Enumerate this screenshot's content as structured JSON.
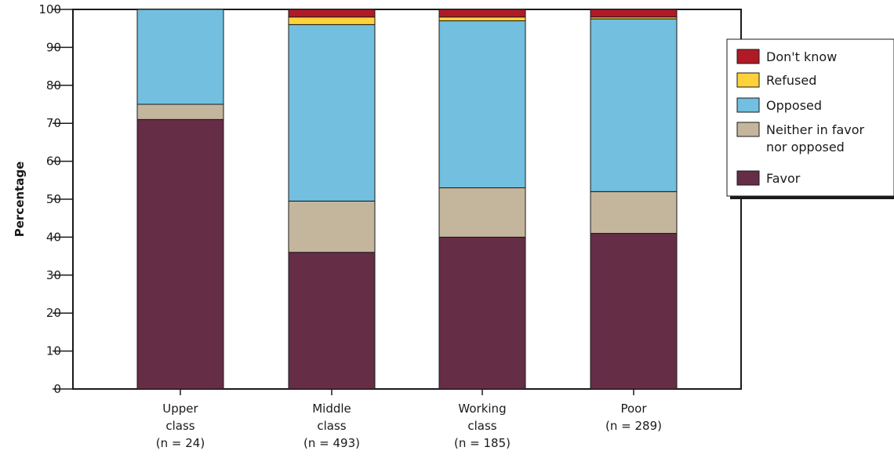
{
  "chart_data": {
    "type": "bar",
    "stacked": true,
    "ylabel": "Percentage",
    "xlabel": "",
    "ylim": [
      0,
      100
    ],
    "yticks": [
      0,
      10,
      20,
      30,
      40,
      50,
      60,
      70,
      80,
      90,
      100
    ],
    "categories": [
      [
        "Upper",
        "class",
        "(n = 24)"
      ],
      [
        "Middle",
        "class",
        "(n = 493)"
      ],
      [
        "Working",
        "class",
        "(n = 185)"
      ],
      [
        "Poor",
        "(n = 289)"
      ]
    ],
    "series": [
      {
        "name": "Favor",
        "color": "#662d47",
        "values": [
          71,
          36,
          40,
          41
        ]
      },
      {
        "name": "Neither in favor nor opposed",
        "color": "#c4b59d",
        "values": [
          4,
          13.5,
          13,
          11
        ]
      },
      {
        "name": "Opposed",
        "color": "#72bfdf",
        "values": [
          25,
          46.5,
          44,
          45.5
        ]
      },
      {
        "name": "Refused",
        "color": "#ffd23c",
        "values": [
          0,
          2,
          1,
          0.5
        ]
      },
      {
        "name": "Don't know",
        "color": "#b01a24",
        "values": [
          0,
          2,
          2,
          2
        ]
      }
    ],
    "legend": {
      "placement": "right",
      "order": [
        "Don't know",
        "Refused",
        "Opposed",
        "Neither in favor nor opposed",
        "Favor"
      ],
      "entries": [
        {
          "series": "Don't know",
          "lines": [
            "Don't know"
          ]
        },
        {
          "series": "Refused",
          "lines": [
            "Refused"
          ]
        },
        {
          "series": "Opposed",
          "lines": [
            "Opposed"
          ]
        },
        {
          "series": "Neither in favor nor opposed",
          "lines": [
            "Neither in favor",
            "nor opposed"
          ]
        },
        {
          "series": "Favor",
          "lines": [
            "Favor"
          ]
        }
      ]
    },
    "grid": false
  }
}
